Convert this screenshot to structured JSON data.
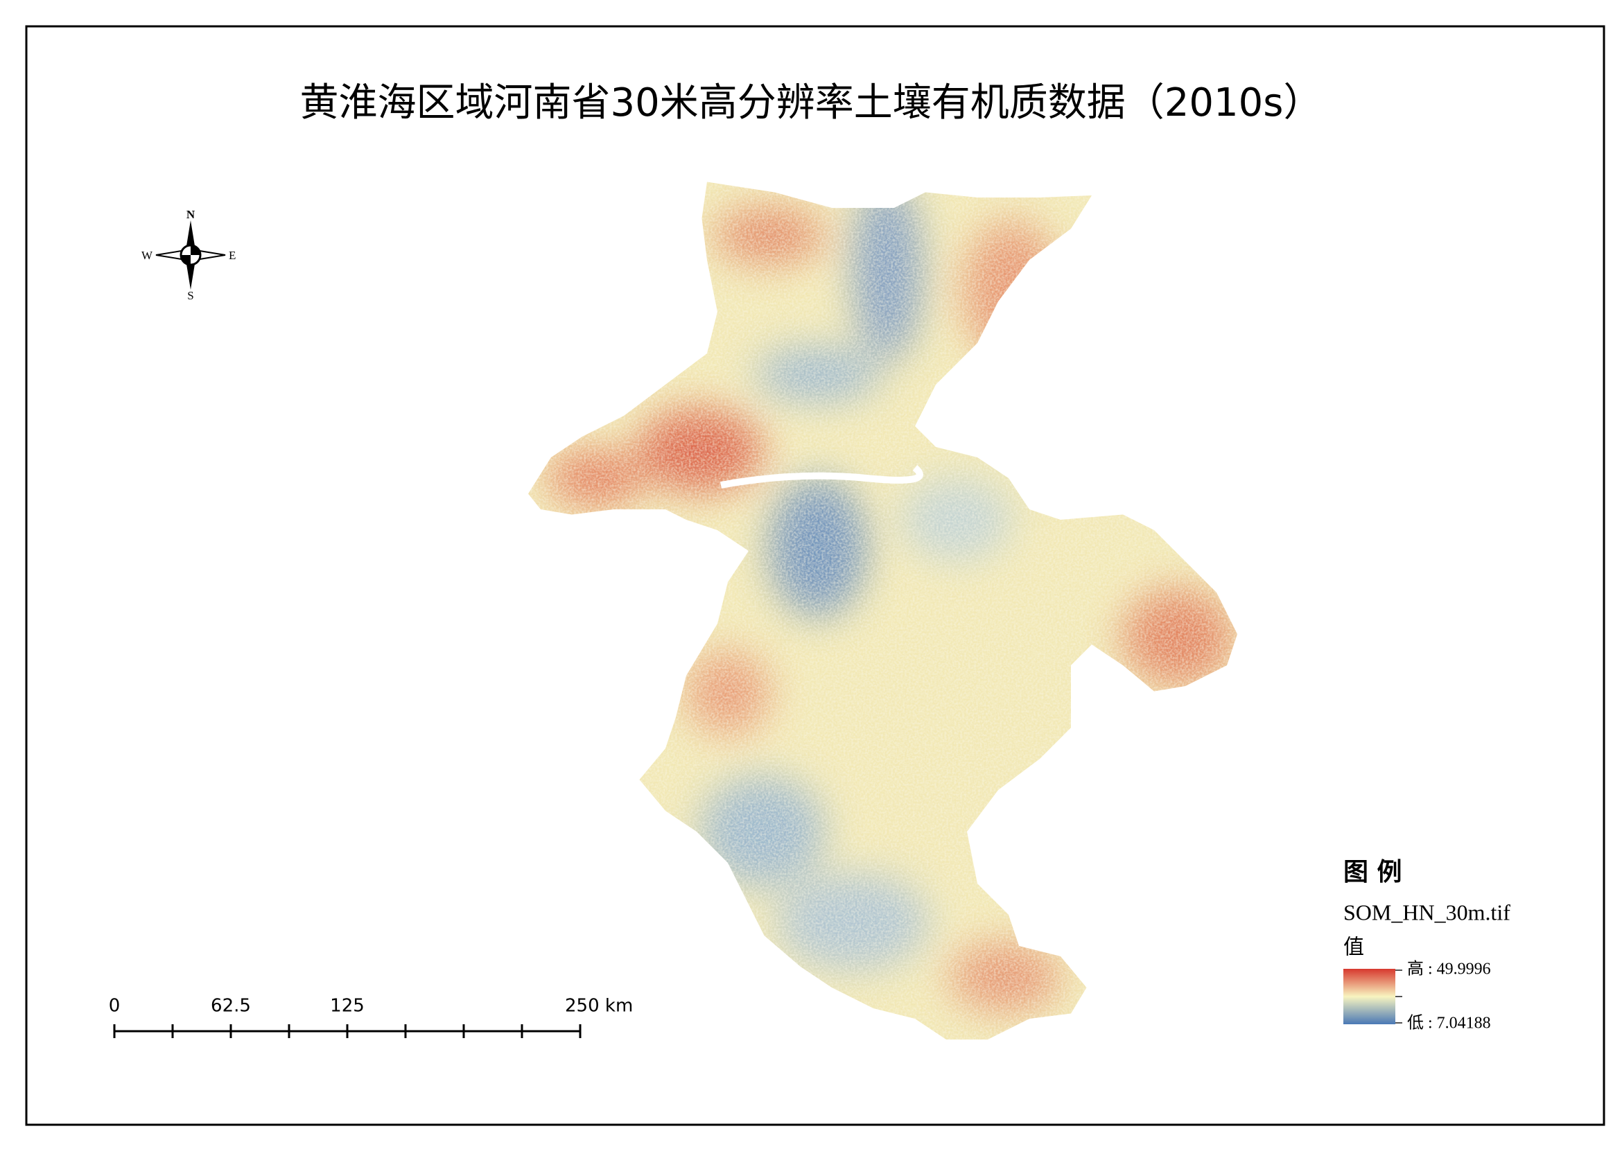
{
  "title": "黄淮海区域河南省30米高分辨率土壤有机质数据（2010s）",
  "compass": {
    "north": "N",
    "east": "E",
    "south": "S",
    "west": "W"
  },
  "scale_bar": {
    "labels": [
      "0",
      "62.5",
      "125",
      "250 km"
    ]
  },
  "legend": {
    "title": "图 例",
    "layer": "SOM_HN_30m.tif",
    "field": "值",
    "high": "高 : 49.9996",
    "low": "低 : 7.04188"
  }
}
